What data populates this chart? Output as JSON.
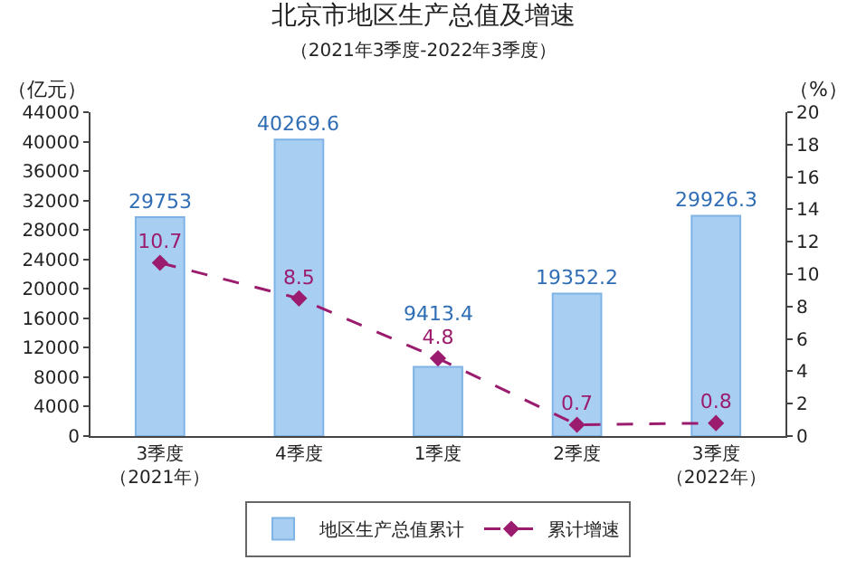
{
  "chart_data": {
    "type": "bar",
    "title": "北京市地区生产总值及增速",
    "subtitle": "（2021年3季度-2022年3季度）",
    "ylabel": "（亿元）",
    "y2label": "（%）",
    "categories": [
      "3季度（2021年）",
      "4季度",
      "1季度",
      "2季度",
      "3季度（2022年）"
    ],
    "series": [
      {
        "name": "地区生产总值累计",
        "color": "#a8cff2",
        "values": [
          29753,
          40269.6,
          9413.4,
          19352.2,
          29926.3
        ]
      },
      {
        "name": "累计增速",
        "type": "line",
        "axis": "y2",
        "color": "#9b1c6e",
        "values": [
          10.7,
          8.5,
          4.8,
          0.7,
          0.8
        ],
        "marker": "diamond",
        "line_style": "dashed"
      }
    ],
    "ylim": [
      0,
      44000
    ],
    "yticks": [
      0,
      4000,
      8000,
      12000,
      16000,
      20000,
      24000,
      28000,
      32000,
      36000,
      40000,
      44000
    ],
    "y2lim": [
      0,
      20
    ],
    "y2ticks": [
      0,
      2,
      4,
      6,
      8,
      10,
      12,
      14,
      16,
      18,
      20
    ],
    "data_labels": true,
    "grid": false,
    "legend": "bottom"
  }
}
